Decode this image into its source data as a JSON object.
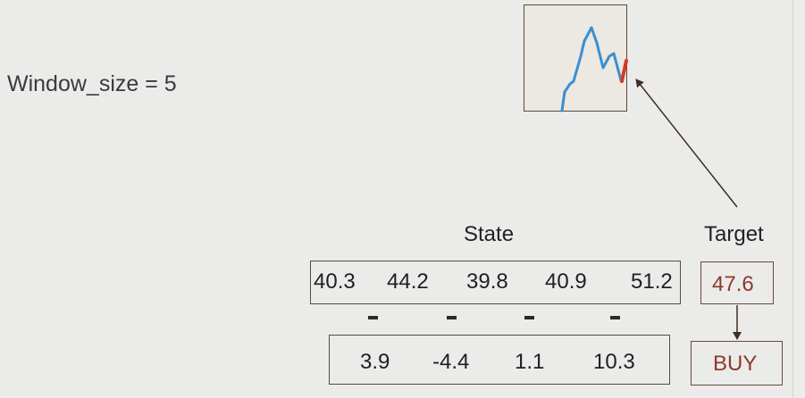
{
  "window_label": "Window_size = 5",
  "headings": {
    "state": "State",
    "target": "Target"
  },
  "state_values": [
    "40.3",
    "44.2",
    "39.8",
    "40.9",
    "51.2"
  ],
  "diff_values": [
    "3.9",
    "-4.4",
    "1.1",
    "10.3"
  ],
  "target_value": "47.6",
  "action": "BUY",
  "colors": {
    "series_line": "#3a8fd0",
    "target_segment": "#d03a2a",
    "accent_text": "#8b3a2b"
  }
}
